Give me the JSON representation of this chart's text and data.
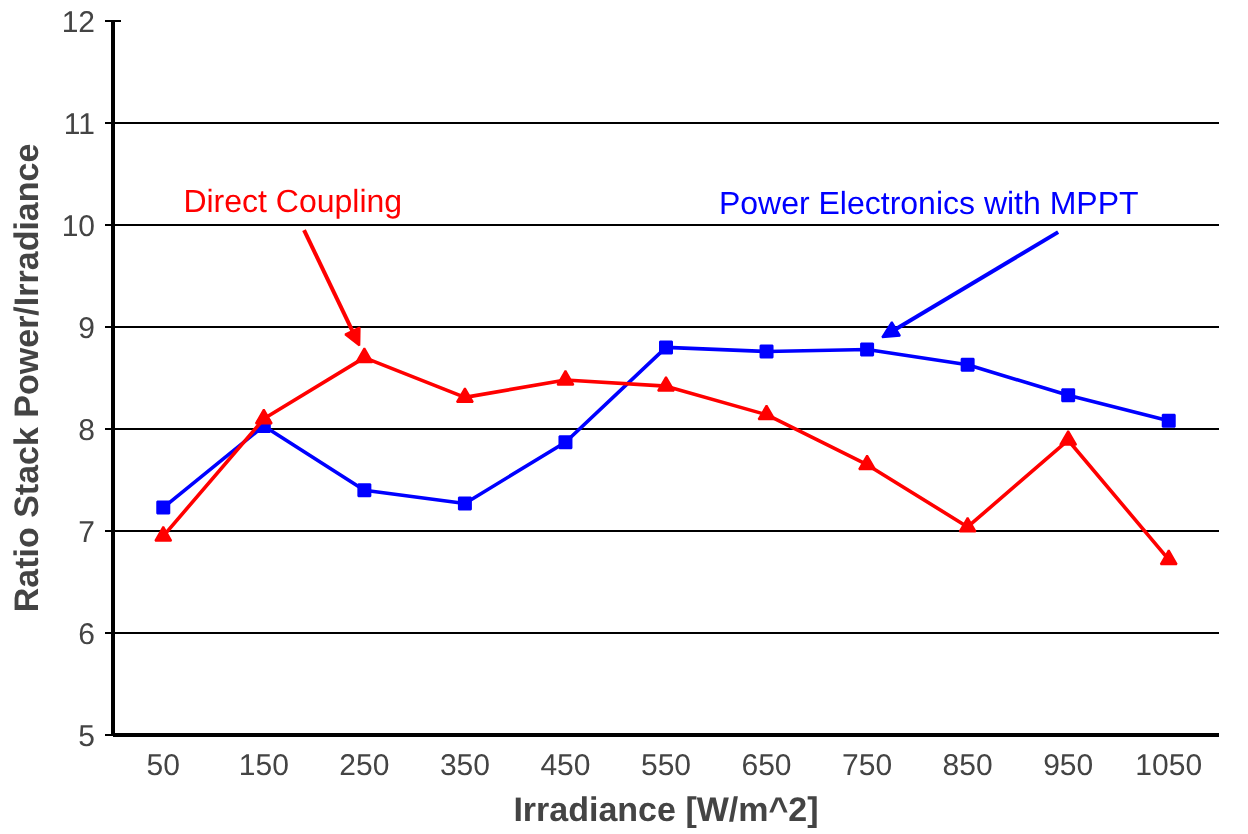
{
  "chart_data": {
    "type": "line",
    "xlabel": "Irradiance [W/m^2]",
    "ylabel": "Ratio Stack Power/Irradiance",
    "categories": [
      "50",
      "150",
      "250",
      "350",
      "450",
      "550",
      "650",
      "750",
      "850",
      "950",
      "1050"
    ],
    "series": [
      {
        "name": "Direct Coupling",
        "color": "#ff0000",
        "marker": "triangle",
        "values": [
          6.95,
          8.1,
          8.7,
          8.31,
          8.48,
          8.42,
          8.14,
          7.65,
          7.04,
          7.89,
          6.72
        ]
      },
      {
        "name": "Power Electronics with MPPT",
        "color": "#0000ff",
        "marker": "square",
        "values": [
          7.23,
          8.03,
          7.4,
          7.27,
          7.87,
          8.8,
          8.76,
          8.78,
          8.63,
          8.33,
          8.08
        ]
      }
    ],
    "ylim": [
      5,
      12
    ],
    "yticks": [
      5,
      6,
      7,
      8,
      9,
      10,
      11,
      12
    ],
    "grid": "y",
    "legend": false,
    "line_style": "solid"
  }
}
